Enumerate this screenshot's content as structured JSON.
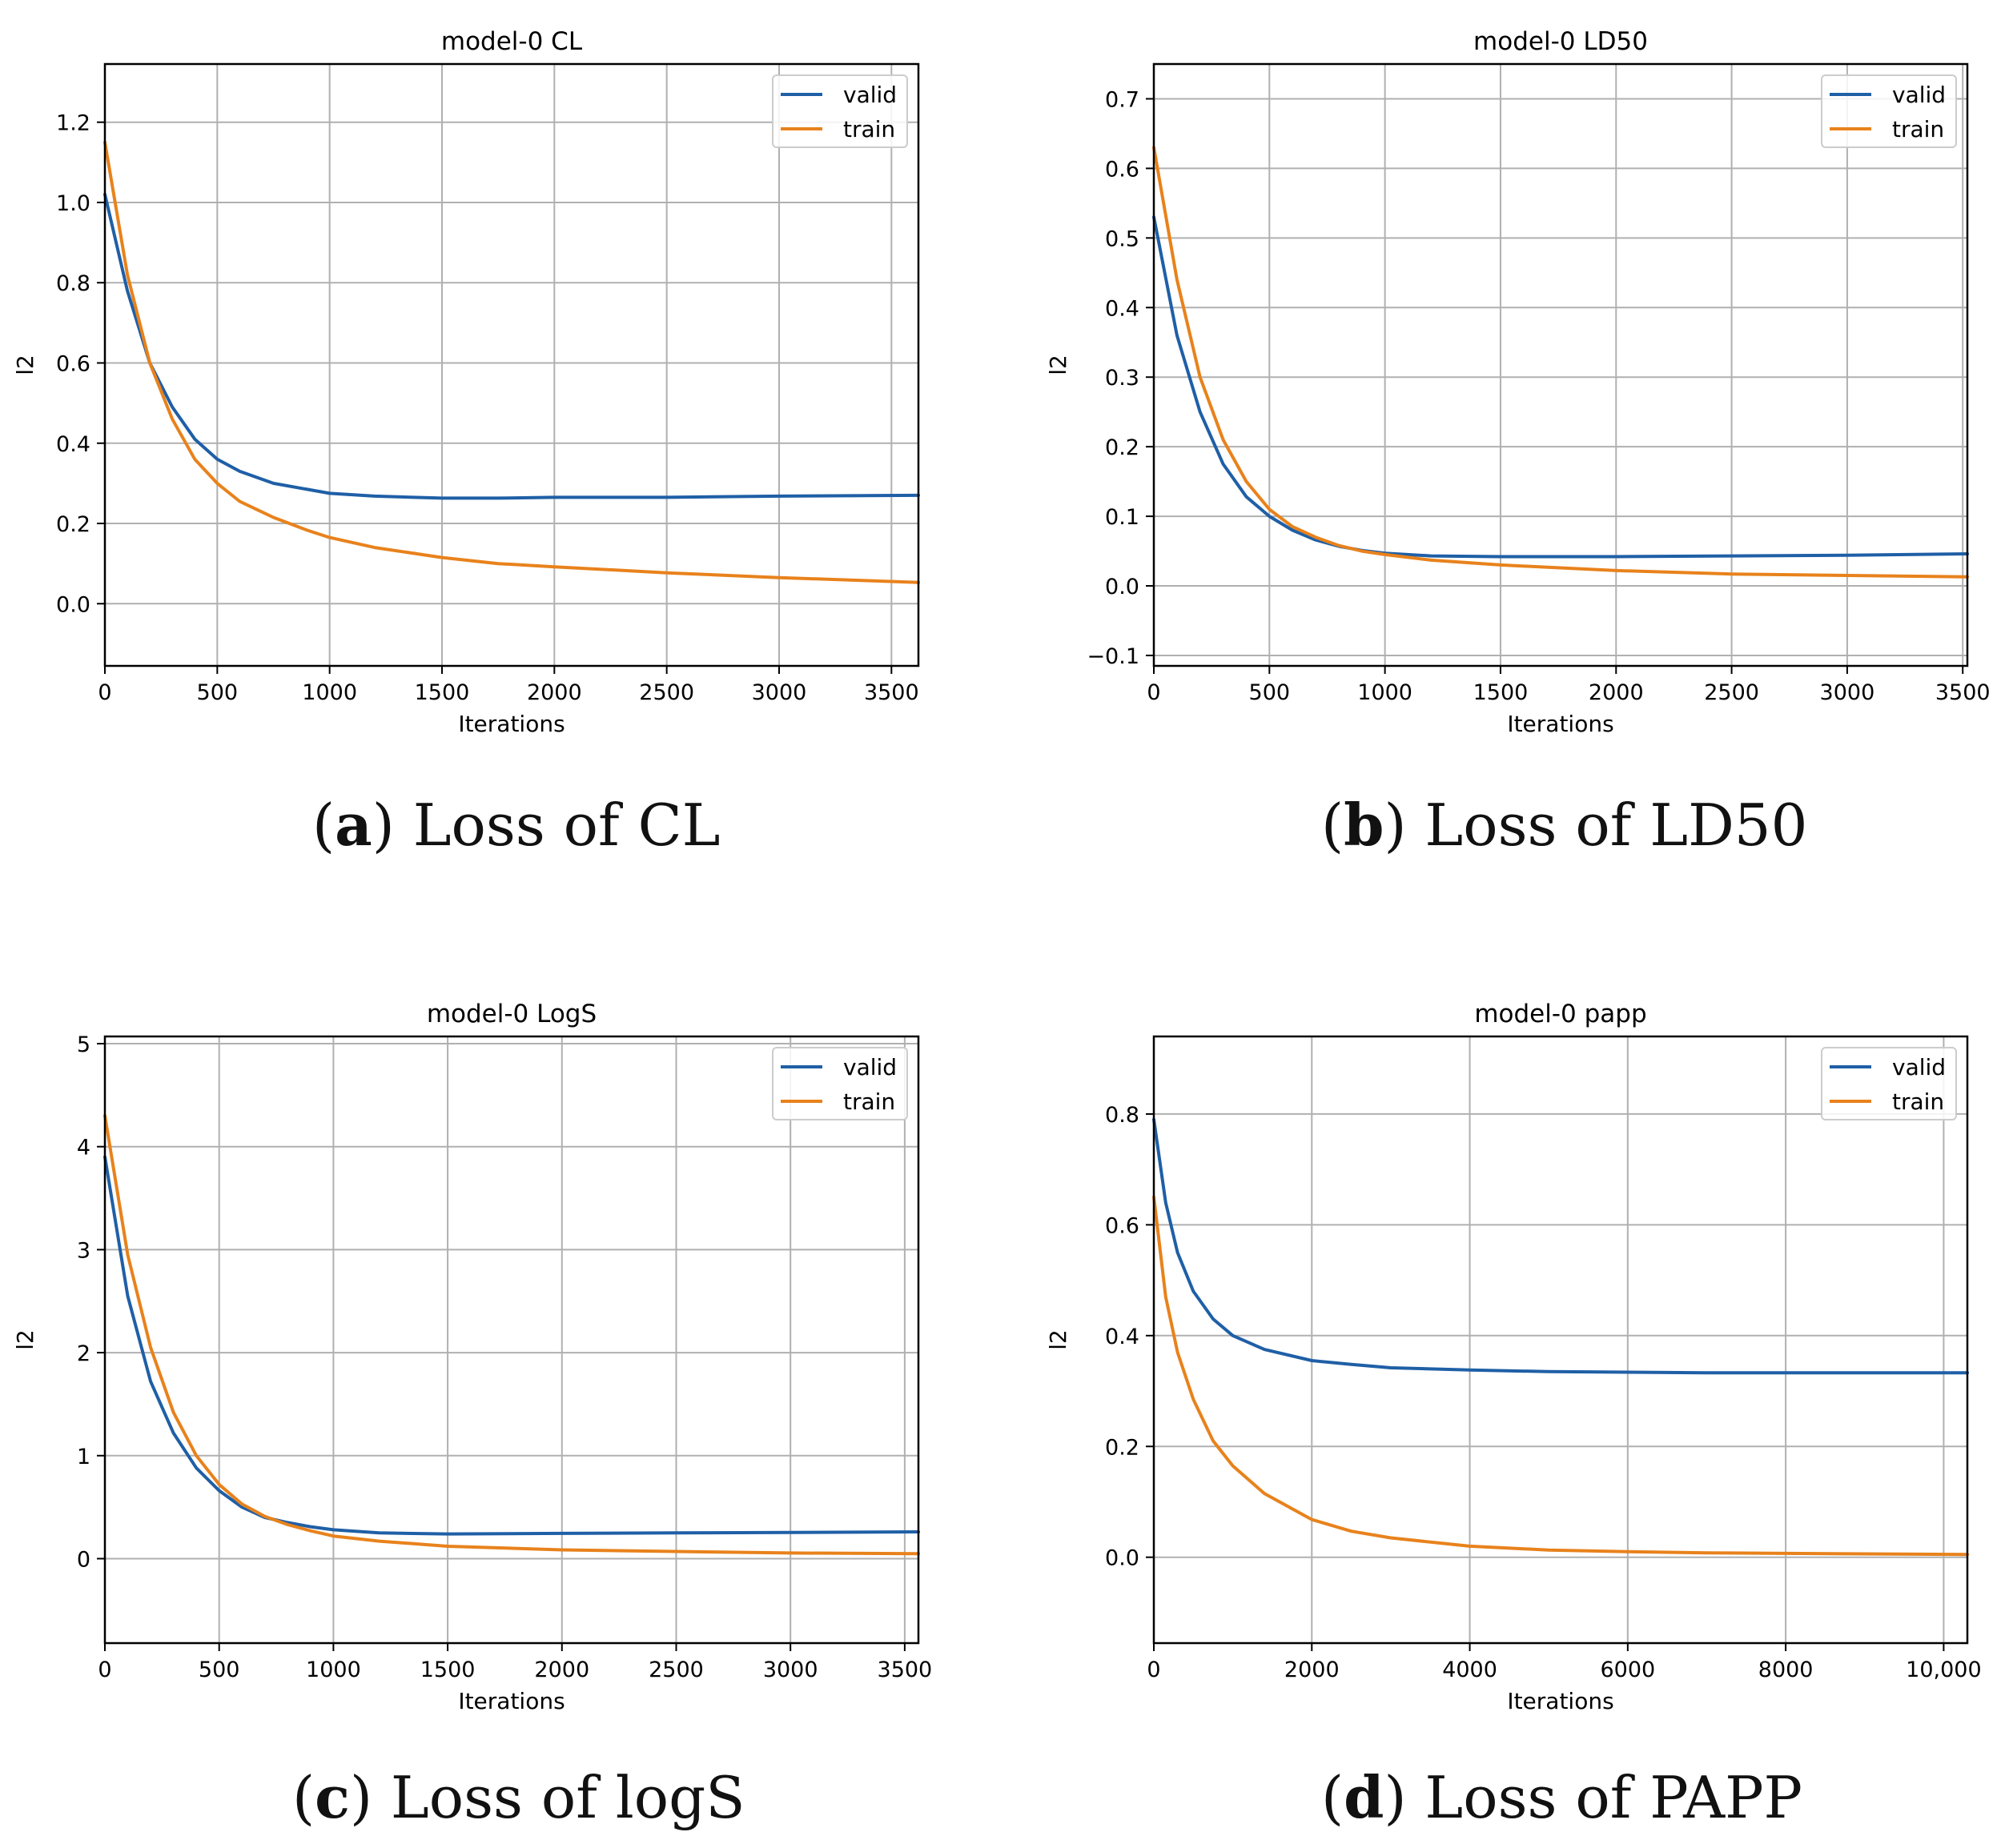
{
  "colors": {
    "valid": "#1f5fa6",
    "train": "#e8821c",
    "grid": "#b0b0b0",
    "axis": "#000000"
  },
  "chart_data": [
    {
      "type": "line",
      "title": "model-0 CL",
      "xlabel": "Iterations",
      "ylabel": "l2",
      "xlim": [
        0,
        3620
      ],
      "ylim": [
        -0.155,
        1.345
      ],
      "xticks": [
        0,
        500,
        1000,
        1500,
        2000,
        2500,
        3000,
        3500
      ],
      "xtick_labels": [
        "0",
        "500",
        "1000",
        "1500",
        "2000",
        "2500",
        "3000",
        "3500"
      ],
      "yticks": [
        0.0,
        0.2,
        0.4,
        0.6,
        0.8,
        1.0,
        1.2
      ],
      "ytick_labels": [
        "0.0",
        "0.2",
        "0.4",
        "0.6",
        "0.8",
        "1.0",
        "1.2"
      ],
      "grid": true,
      "legend": "top-right",
      "caption": {
        "letter": "a",
        "text": "Loss of CL"
      },
      "series": [
        {
          "name": "valid",
          "color": "#1f5fa6",
          "x": [
            0,
            100,
            200,
            300,
            400,
            500,
            600,
            750,
            900,
            1000,
            1200,
            1500,
            1750,
            2000,
            2500,
            3000,
            3620
          ],
          "y": [
            1.02,
            0.78,
            0.6,
            0.49,
            0.41,
            0.36,
            0.33,
            0.3,
            0.285,
            0.275,
            0.268,
            0.263,
            0.263,
            0.265,
            0.265,
            0.268,
            0.27
          ]
        },
        {
          "name": "train",
          "color": "#e8821c",
          "x": [
            0,
            100,
            200,
            300,
            400,
            500,
            600,
            750,
            900,
            1000,
            1200,
            1500,
            1750,
            2000,
            2500,
            3000,
            3620
          ],
          "y": [
            1.15,
            0.82,
            0.6,
            0.46,
            0.36,
            0.3,
            0.255,
            0.215,
            0.183,
            0.165,
            0.14,
            0.115,
            0.1,
            0.092,
            0.077,
            0.065,
            0.053
          ]
        }
      ]
    },
    {
      "type": "line",
      "title": "model-0 LD50",
      "xlabel": "Iterations",
      "ylabel": "l2",
      "xlim": [
        0,
        3520
      ],
      "ylim": [
        -0.115,
        0.75
      ],
      "xticks": [
        0,
        500,
        1000,
        1500,
        2000,
        2500,
        3000,
        3500
      ],
      "xtick_labels": [
        "0",
        "500",
        "1000",
        "1500",
        "2000",
        "2500",
        "3000",
        "3500"
      ],
      "yticks": [
        -0.1,
        0.0,
        0.1,
        0.2,
        0.3,
        0.4,
        0.5,
        0.6,
        0.7
      ],
      "ytick_labels": [
        "−0.1",
        "0.0",
        "0.1",
        "0.2",
        "0.3",
        "0.4",
        "0.5",
        "0.6",
        "0.7"
      ],
      "grid": true,
      "legend": "top-right",
      "caption": {
        "letter": "b",
        "text": "Loss of LD50"
      },
      "series": [
        {
          "name": "valid",
          "color": "#1f5fa6",
          "x": [
            0,
            100,
            200,
            300,
            400,
            500,
            600,
            700,
            800,
            900,
            1000,
            1200,
            1500,
            2000,
            2500,
            3000,
            3520
          ],
          "y": [
            0.53,
            0.36,
            0.25,
            0.175,
            0.128,
            0.1,
            0.08,
            0.066,
            0.057,
            0.051,
            0.047,
            0.043,
            0.042,
            0.042,
            0.043,
            0.044,
            0.046
          ]
        },
        {
          "name": "train",
          "color": "#e8821c",
          "x": [
            0,
            100,
            200,
            300,
            400,
            500,
            600,
            700,
            800,
            900,
            1000,
            1200,
            1500,
            2000,
            2500,
            3000,
            3520
          ],
          "y": [
            0.63,
            0.44,
            0.3,
            0.21,
            0.15,
            0.11,
            0.085,
            0.07,
            0.058,
            0.05,
            0.045,
            0.037,
            0.03,
            0.022,
            0.017,
            0.015,
            0.013
          ]
        }
      ]
    },
    {
      "type": "line",
      "title": "model-0 LogS",
      "xlabel": "Iterations",
      "ylabel": "l2",
      "xlim": [
        0,
        3560
      ],
      "ylim": [
        -0.82,
        5.07
      ],
      "xticks": [
        0,
        500,
        1000,
        1500,
        2000,
        2500,
        3000,
        3500
      ],
      "xtick_labels": [
        "0",
        "500",
        "1000",
        "1500",
        "2000",
        "2500",
        "3000",
        "3500"
      ],
      "yticks": [
        0,
        1,
        2,
        3,
        4,
        5
      ],
      "ytick_labels": [
        "0",
        "1",
        "2",
        "3",
        "4",
        "5"
      ],
      "grid": true,
      "legend": "top-right",
      "caption": {
        "letter": "c",
        "text": "Loss of logS"
      },
      "series": [
        {
          "name": "valid",
          "color": "#1f5fa6",
          "x": [
            0,
            100,
            200,
            300,
            400,
            500,
            600,
            700,
            800,
            900,
            1000,
            1200,
            1500,
            2000,
            2500,
            3000,
            3560
          ],
          "y": [
            3.9,
            2.55,
            1.72,
            1.22,
            0.88,
            0.66,
            0.5,
            0.4,
            0.35,
            0.31,
            0.28,
            0.25,
            0.24,
            0.245,
            0.25,
            0.255,
            0.26
          ]
        },
        {
          "name": "train",
          "color": "#e8821c",
          "x": [
            0,
            100,
            200,
            300,
            400,
            500,
            600,
            700,
            800,
            900,
            1000,
            1200,
            1500,
            2000,
            2500,
            3000,
            3560
          ],
          "y": [
            4.3,
            2.95,
            2.05,
            1.42,
            1.0,
            0.72,
            0.53,
            0.41,
            0.33,
            0.27,
            0.22,
            0.17,
            0.12,
            0.085,
            0.07,
            0.055,
            0.048
          ]
        }
      ]
    },
    {
      "type": "line",
      "title": "model-0 papp",
      "xlabel": "Iterations",
      "ylabel": "l2",
      "xlim": [
        0,
        10300
      ],
      "ylim": [
        -0.155,
        0.94
      ],
      "xticks": [
        0,
        2000,
        4000,
        6000,
        8000,
        10000
      ],
      "xtick_labels": [
        "0",
        "2000",
        "4000",
        "6000",
        "8000",
        "10,000"
      ],
      "yticks": [
        0.0,
        0.2,
        0.4,
        0.6,
        0.8
      ],
      "ytick_labels": [
        "0.0",
        "0.2",
        "0.4",
        "0.6",
        "0.8"
      ],
      "grid": true,
      "legend": "top-right",
      "caption": {
        "letter": "d",
        "text": "Loss of PAPP"
      },
      "series": [
        {
          "name": "valid",
          "color": "#1f5fa6",
          "x": [
            0,
            150,
            300,
            500,
            750,
            1000,
            1400,
            2000,
            2500,
            3000,
            4000,
            5000,
            6000,
            7000,
            8000,
            9000,
            10300
          ],
          "y": [
            0.79,
            0.64,
            0.55,
            0.48,
            0.43,
            0.4,
            0.375,
            0.355,
            0.348,
            0.342,
            0.338,
            0.335,
            0.334,
            0.333,
            0.333,
            0.333,
            0.333
          ]
        },
        {
          "name": "train",
          "color": "#e8821c",
          "x": [
            0,
            150,
            300,
            500,
            750,
            1000,
            1400,
            2000,
            2500,
            3000,
            4000,
            5000,
            6000,
            7000,
            8000,
            9000,
            10300
          ],
          "y": [
            0.65,
            0.47,
            0.37,
            0.285,
            0.21,
            0.165,
            0.115,
            0.068,
            0.047,
            0.035,
            0.02,
            0.013,
            0.01,
            0.008,
            0.007,
            0.006,
            0.005
          ]
        }
      ]
    }
  ]
}
